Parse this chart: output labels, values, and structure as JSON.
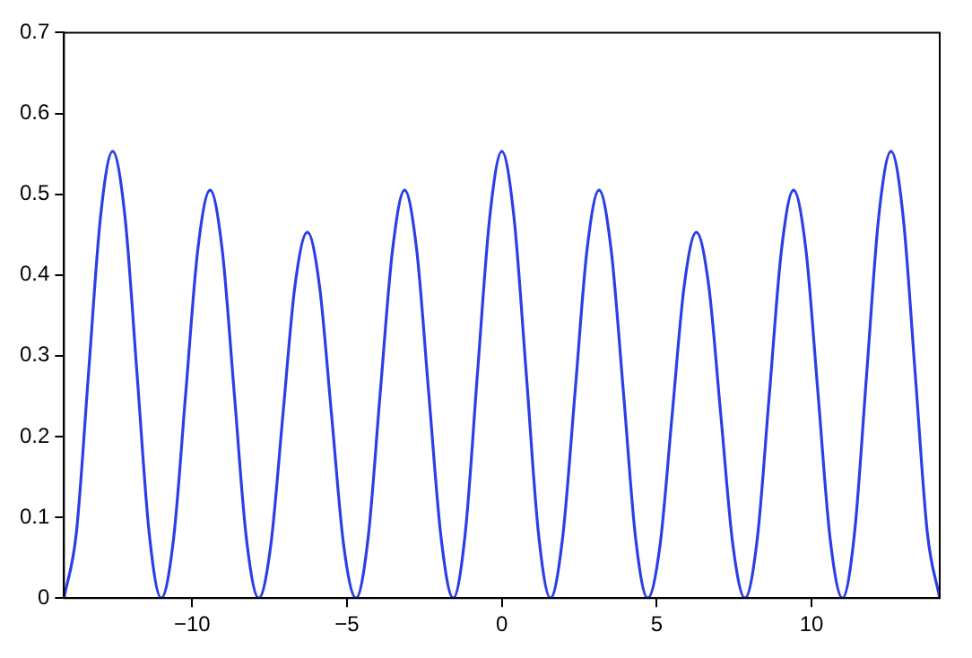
{
  "chart_data": {
    "type": "line",
    "x": [
      -14.14,
      -13.74,
      -13.35,
      -12.96,
      -12.57,
      -12.17,
      -11.78,
      -11.39,
      -11.0,
      -10.6,
      -10.21,
      -9.82,
      -9.42,
      -9.03,
      -8.64,
      -8.25,
      -7.85,
      -7.46,
      -7.07,
      -6.68,
      -6.28,
      -5.89,
      -5.5,
      -5.11,
      -4.71,
      -4.32,
      -3.93,
      -3.53,
      -3.14,
      -2.75,
      -2.36,
      -1.96,
      -1.57,
      -1.18,
      -0.79,
      -0.39,
      0,
      0.39,
      0.79,
      1.18,
      1.57,
      1.96,
      2.36,
      2.75,
      3.14,
      3.53,
      3.93,
      4.32,
      4.71,
      5.11,
      5.5,
      5.89,
      6.28,
      6.68,
      7.07,
      7.46,
      7.85,
      8.25,
      8.64,
      9.03,
      9.42,
      9.82,
      10.21,
      10.6,
      11.0,
      11.39,
      11.78,
      12.17,
      12.57,
      12.96,
      13.35,
      13.74,
      14.14
    ],
    "series": [
      {
        "color": "#2b3fe6",
        "values": [
          0,
          0.081,
          0.277,
          0.472,
          0.553,
          0.472,
          0.277,
          0.081,
          0,
          0.074,
          0.253,
          0.431,
          0.505,
          0.431,
          0.253,
          0.074,
          0,
          0.066,
          0.227,
          0.387,
          0.453,
          0.387,
          0.227,
          0.066,
          0,
          0.074,
          0.253,
          0.431,
          0.505,
          0.431,
          0.253,
          0.074,
          0,
          0.081,
          0.277,
          0.472,
          0.553,
          0.472,
          0.277,
          0.081,
          0,
          0.074,
          0.253,
          0.431,
          0.505,
          0.431,
          0.253,
          0.074,
          0,
          0.066,
          0.227,
          0.387,
          0.453,
          0.387,
          0.227,
          0.066,
          0,
          0.074,
          0.253,
          0.431,
          0.505,
          0.431,
          0.253,
          0.074,
          0,
          0.081,
          0.277,
          0.472,
          0.553,
          0.472,
          0.277,
          0.081,
          0
        ]
      }
    ],
    "xlim": [
      -14.14,
      14.14
    ],
    "xticks": [
      {
        "value": -10,
        "label": "−10"
      },
      {
        "value": -5,
        "label": "−5"
      },
      0,
      5,
      10
    ],
    "ylim": [
      0,
      0.7
    ],
    "yticks": [
      0,
      0.1,
      0.2,
      0.3,
      0.4,
      0.5,
      0.6,
      0.7
    ],
    "grid": false,
    "legend": false,
    "marker": "none",
    "line_style": "solid"
  }
}
